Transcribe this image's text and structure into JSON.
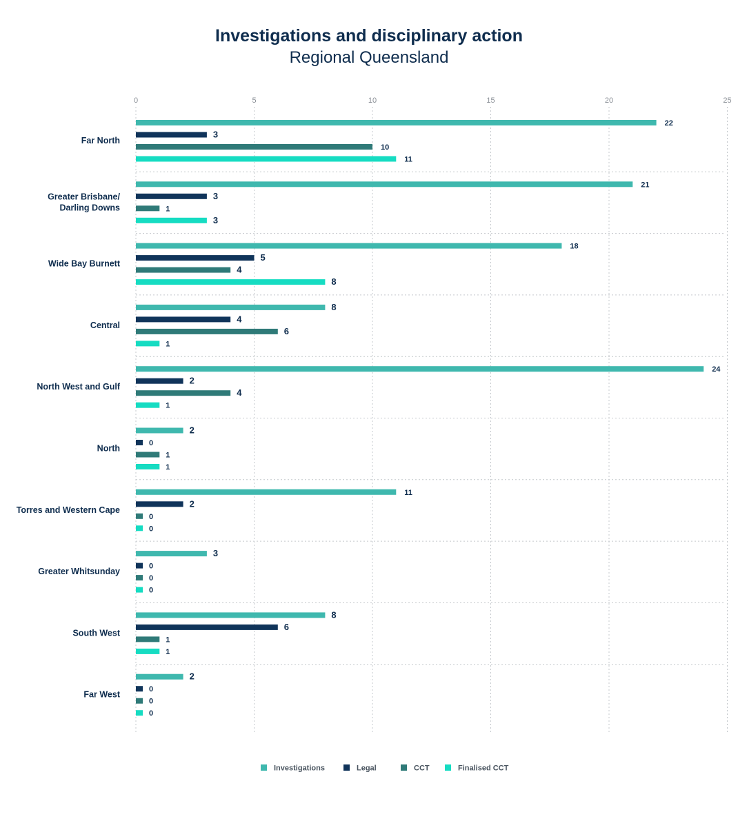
{
  "chart_data": {
    "type": "bar",
    "orientation": "horizontal",
    "title": "Investigations and disciplinary action",
    "subtitle": "Regional Queensland",
    "xlim": [
      0,
      25
    ],
    "ticks": [
      "0",
      "5",
      "10",
      "15",
      "20",
      "25"
    ],
    "grid": true,
    "legend_position": "bottom",
    "categories": [
      [
        "Far North"
      ],
      [
        "Greater Brisbane/",
        "Darling Downs"
      ],
      [
        "Wide Bay Burnett"
      ],
      [
        "Central"
      ],
      [
        "North West and Gulf"
      ],
      [
        "North"
      ],
      [
        "Torres and Western Cape"
      ],
      [
        "Greater Whitsunday"
      ],
      [
        "South West"
      ],
      [
        "Far West"
      ]
    ],
    "series": [
      {
        "name": "Investigations",
        "color": "#3fb8ae",
        "values": [
          22,
          21,
          18,
          8,
          24,
          2,
          11,
          3,
          8,
          2
        ]
      },
      {
        "name": "Legal",
        "color": "#10345a",
        "values": [
          3,
          3,
          5,
          4,
          2,
          0,
          2,
          0,
          6,
          0
        ]
      },
      {
        "name": "CCT",
        "color": "#2f7a78",
        "values": [
          10,
          1,
          4,
          6,
          4,
          1,
          0,
          0,
          1,
          0
        ]
      },
      {
        "name": "Finalised CCT",
        "color": "#16dcc2",
        "values": [
          11,
          3,
          8,
          1,
          1,
          1,
          0,
          0,
          1,
          0
        ]
      }
    ]
  }
}
